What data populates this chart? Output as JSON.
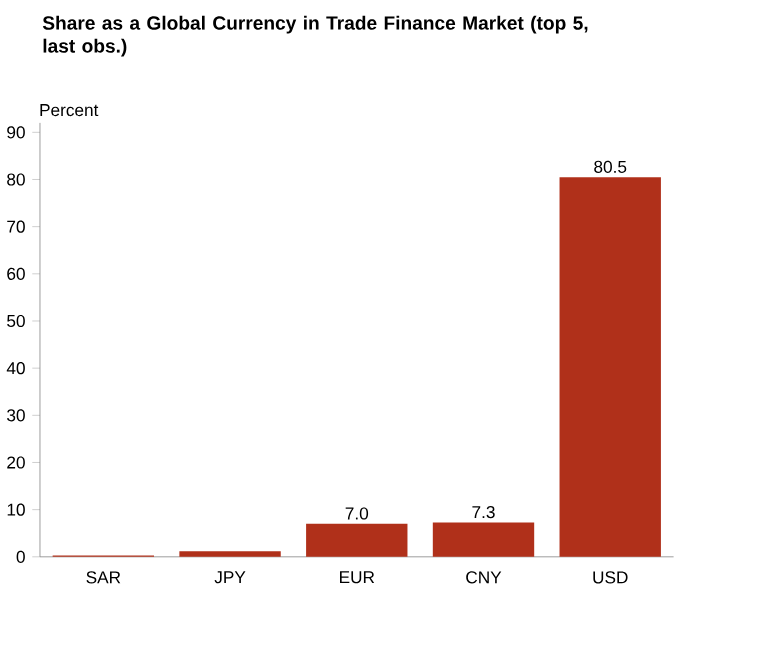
{
  "chart_data": {
    "type": "bar",
    "title": "Share as a Global Currency in Trade Finance Market (top 5, last obs.)",
    "ylabel": "Percent",
    "categories": [
      "SAR",
      "JPY",
      "EUR",
      "CNY",
      "USD"
    ],
    "values": [
      0.3,
      1.2,
      7.0,
      7.3,
      80.5
    ],
    "value_labels": [
      null,
      null,
      "7.0",
      "7.3",
      "80.5"
    ],
    "color": "#b0301a",
    "ylim": [
      0,
      92
    ],
    "yticks": [
      0,
      10,
      20,
      30,
      40,
      50,
      60,
      70,
      80,
      90
    ],
    "grid": false
  }
}
